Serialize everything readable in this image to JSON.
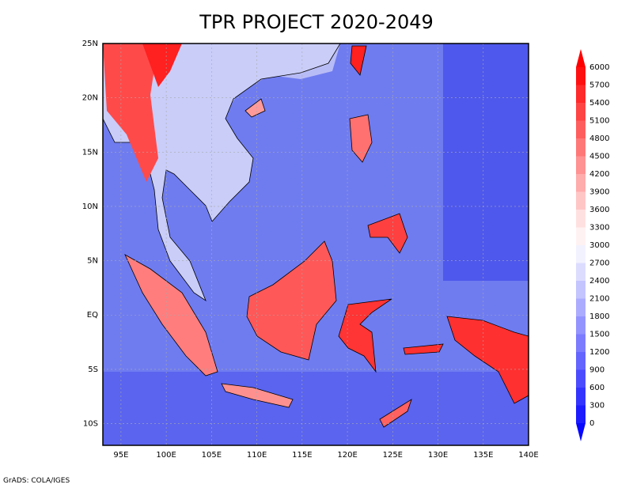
{
  "title": "TPR PROJECT 2020-2049",
  "lat_labels": [
    "25N",
    "20N",
    "15N",
    "10N",
    "5N",
    "EQ",
    "5S",
    "10S"
  ],
  "lon_labels": [
    "95E",
    "100E",
    "105E",
    "110E",
    "115E",
    "120E",
    "125E",
    "130E",
    "135E",
    "140E"
  ],
  "colorbar": {
    "labels": [
      6000,
      5700,
      5400,
      5100,
      4800,
      4500,
      4200,
      3900,
      3600,
      3300,
      3000,
      2700,
      2400,
      2100,
      1800,
      1500,
      1200,
      900,
      600,
      300,
      0
    ],
    "colors": [
      "#ff0000",
      "#ff1010",
      "#ff2a2a",
      "#ff4444",
      "#ff5e5e",
      "#ff7878",
      "#ff9292",
      "#ffacac",
      "#ffc6c6",
      "#ffe0e0",
      "#fff2f2",
      "#f2f2ff",
      "#dcdcff",
      "#c4c4ff",
      "#acacff",
      "#9494ff",
      "#7c7cff",
      "#6464ff",
      "#4c4cff",
      "#3434ff",
      "#1c1cff",
      "#0808ff"
    ]
  },
  "footer": "GrADS: COLA/IGES"
}
